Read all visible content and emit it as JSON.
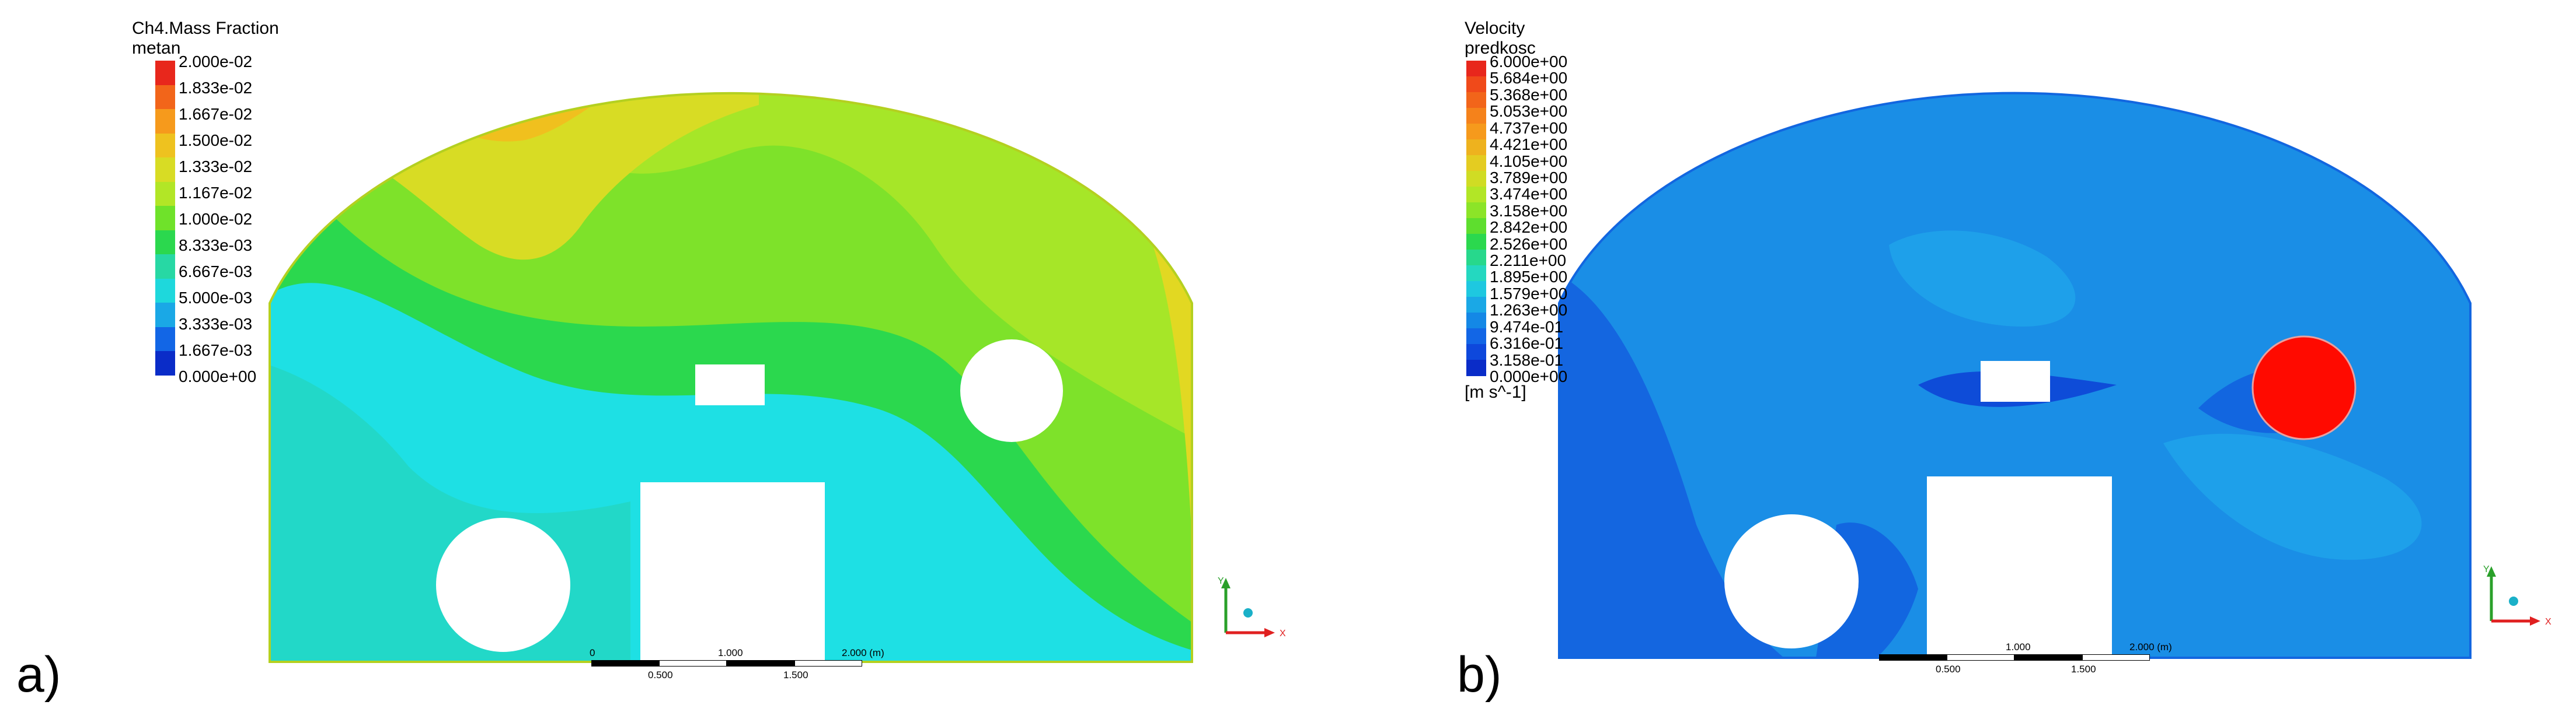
{
  "panels": [
    {
      "label": "a)",
      "legend": {
        "title": "Ch4.Mass Fraction",
        "subtitle": "metan",
        "units": "",
        "ticks": [
          "2.000e-02",
          "1.833e-02",
          "1.667e-02",
          "1.500e-02",
          "1.333e-02",
          "1.167e-02",
          "1.000e-02",
          "8.333e-03",
          "6.667e-03",
          "5.000e-03",
          "3.333e-03",
          "1.667e-03",
          "0.000e+00"
        ],
        "colors": [
          "#e8271c",
          "#f2651a",
          "#f69a1c",
          "#eec21f",
          "#d8dc24",
          "#b2e626",
          "#6fe22a",
          "#2bd84e",
          "#27d8a4",
          "#1ed8dc",
          "#1aa8e6",
          "#1266e6",
          "#0a2cc8"
        ]
      },
      "scale_bar": {
        "labels_top": [
          "0",
          "1.000",
          "2.000  (m)"
        ],
        "labels_bottom": [
          "0.500",
          "1.500"
        ]
      },
      "axes": {
        "y": "Y",
        "x": "X"
      }
    },
    {
      "label": "b)",
      "legend": {
        "title": "Velocity",
        "subtitle": "predkosc",
        "units": "[m s^-1]",
        "ticks": [
          "6.000e+00",
          "5.684e+00",
          "5.368e+00",
          "5.053e+00",
          "4.737e+00",
          "4.421e+00",
          "4.105e+00",
          "3.789e+00",
          "3.474e+00",
          "3.158e+00",
          "2.842e+00",
          "2.526e+00",
          "2.211e+00",
          "1.895e+00",
          "1.579e+00",
          "1.263e+00",
          "9.474e-01",
          "6.316e-01",
          "3.158e-01",
          "0.000e+00"
        ],
        "colors": [
          "#e8271c",
          "#f04a1a",
          "#f2651a",
          "#f5821b",
          "#f69a1c",
          "#eeb21e",
          "#e4cc21",
          "#d0dc24",
          "#b2e626",
          "#8ce428",
          "#5ede2e",
          "#2bd84e",
          "#27d88c",
          "#24d8c0",
          "#1ec8e0",
          "#1aa8e6",
          "#1488e6",
          "#1266e6",
          "#0e48dc",
          "#0a2cc8"
        ]
      },
      "scale_bar": {
        "labels_top": [
          "1.000",
          "2.000  (m)"
        ],
        "labels_bottom": [
          "0.500",
          "1.500"
        ]
      },
      "axes": {
        "y": "Y",
        "x": "X"
      }
    }
  ]
}
